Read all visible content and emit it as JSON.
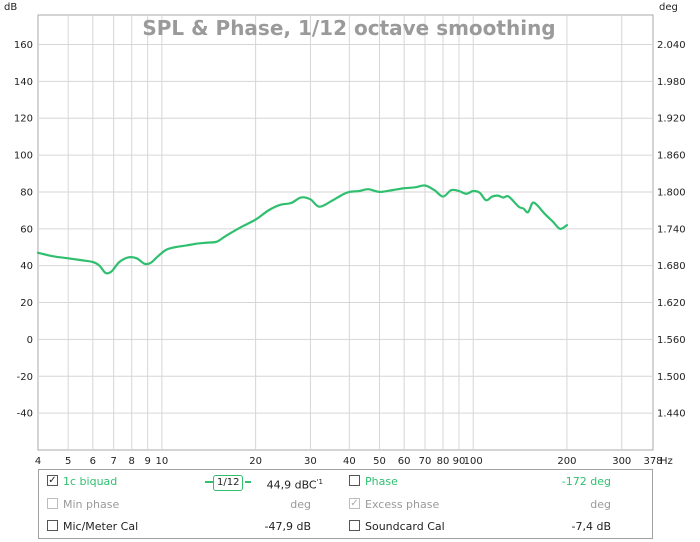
{
  "chart_data": {
    "type": "line",
    "title": "SPL & Phase, 1/12 octave smoothing",
    "left_unit": "dB",
    "right_unit": "deg",
    "x_unit": "Hz",
    "x_scale": "log",
    "xlim": [
      4,
      378
    ],
    "ylim": [
      -60,
      176
    ],
    "y2lim": [
      1.38,
      2.088
    ],
    "grid": true,
    "x_ticks": [
      "4",
      "5",
      "6",
      "7",
      "8",
      "9",
      "10",
      "20",
      "30",
      "40",
      "50",
      "60",
      "70",
      "80",
      "90",
      "100",
      "200",
      "300",
      "378"
    ],
    "y_ticks": [
      "160",
      "140",
      "120",
      "100",
      "80",
      "60",
      "40",
      "20",
      "0",
      "-20",
      "-40"
    ],
    "y2_ticks": [
      "2.040",
      "1.980",
      "1.920",
      "1.860",
      "1.800",
      "1.740",
      "1.680",
      "1.620",
      "1.560",
      "1.500",
      "1.440"
    ],
    "series": [
      {
        "name": "1c biquad",
        "color": "#2fbf6f",
        "x": [
          4,
          4.5,
          5,
          5.5,
          6,
          6.3,
          6.6,
          6.9,
          7.3,
          7.8,
          8.3,
          8.8,
          9.2,
          9.7,
          10.3,
          11,
          12,
          13,
          14,
          15,
          16,
          18,
          20,
          22,
          24,
          26,
          28,
          30,
          32,
          35,
          38,
          40,
          43,
          46,
          50,
          55,
          60,
          65,
          70,
          75,
          80,
          85,
          90,
          95,
          100,
          105,
          110,
          115,
          120,
          125,
          130,
          140,
          145,
          150,
          155,
          160,
          170,
          180,
          190,
          200
        ],
        "y": [
          47,
          45,
          44,
          43,
          42,
          40,
          36,
          37,
          42,
          44.5,
          44,
          41,
          41.5,
          45,
          48.5,
          50,
          51,
          52,
          52.5,
          53,
          56,
          61,
          65,
          70,
          73,
          74,
          77,
          76,
          72,
          75,
          78.5,
          80,
          80.5,
          81.5,
          80,
          81,
          82,
          82.5,
          83.5,
          81,
          77.5,
          81,
          80.5,
          79,
          80.5,
          79.5,
          75.5,
          77.5,
          78,
          77,
          77.5,
          72,
          71,
          69,
          74,
          73,
          68,
          64,
          60,
          62
        ]
      }
    ]
  },
  "legend": {
    "spl": {
      "label": "1c biquad",
      "checked": true,
      "smoothing": "1/12",
      "value": "44,9 dBC",
      "value_sup": "'1"
    },
    "phase": {
      "label": "Phase",
      "checked": false,
      "value": "-172 deg"
    },
    "min_phase": {
      "label": "Min phase",
      "checked": false,
      "value": "deg"
    },
    "excess_phase": {
      "label": "Excess phase",
      "checked": true,
      "value": "deg"
    },
    "mic_cal": {
      "label": "Mic/Meter Cal",
      "checked": false,
      "value": "-47,9 dB"
    },
    "soundcard_cal": {
      "label": "Soundcard Cal",
      "checked": false,
      "value": "-7,4 dB"
    }
  }
}
